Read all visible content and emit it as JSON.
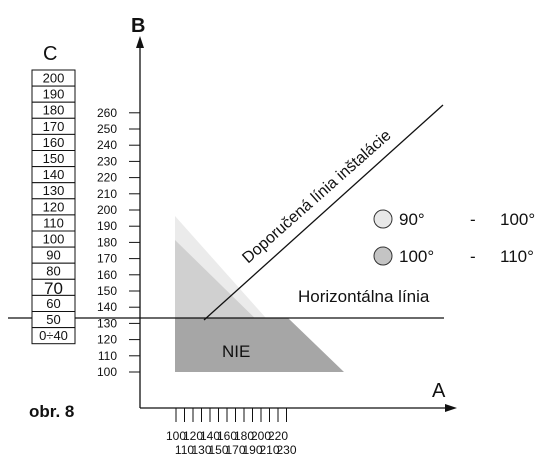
{
  "axes": {
    "a_label": "A",
    "b_label": "B",
    "c_label": "C"
  },
  "b_ticks": [
    "100",
    "110",
    "120",
    "130",
    "140",
    "150",
    "160",
    "170",
    "180",
    "190",
    "200",
    "210",
    "220",
    "230",
    "240",
    "250",
    "260"
  ],
  "a_ticks_upper": [
    "100",
    "120",
    "140",
    "160",
    "180",
    "200",
    "220"
  ],
  "a_ticks_lower": [
    "110",
    "130",
    "150",
    "170",
    "190",
    "210",
    "230"
  ],
  "c_scale": [
    "200",
    "190",
    "180",
    "170",
    "160",
    "150",
    "140",
    "130",
    "120",
    "110",
    "100",
    "90",
    "80",
    "70",
    "60",
    "50",
    "0÷40"
  ],
  "labels": {
    "recommended_line": "Doporučená línia inštalácie",
    "horizontal_line": "Horizontálna línia",
    "no_zone": "NIE",
    "figure": "obr. 8"
  },
  "legend": [
    {
      "range_from": "90°",
      "dash": "-",
      "range_to": "100°",
      "color": "#e8e8e8"
    },
    {
      "range_from": "100°",
      "dash": "-",
      "range_to": "110°",
      "color": "#c4c4c4"
    }
  ],
  "colors": {
    "zone_light": "#ebebeb",
    "zone_mid": "#d0d0d0",
    "zone_dark": "#a6a6a6",
    "line": "#111111"
  }
}
